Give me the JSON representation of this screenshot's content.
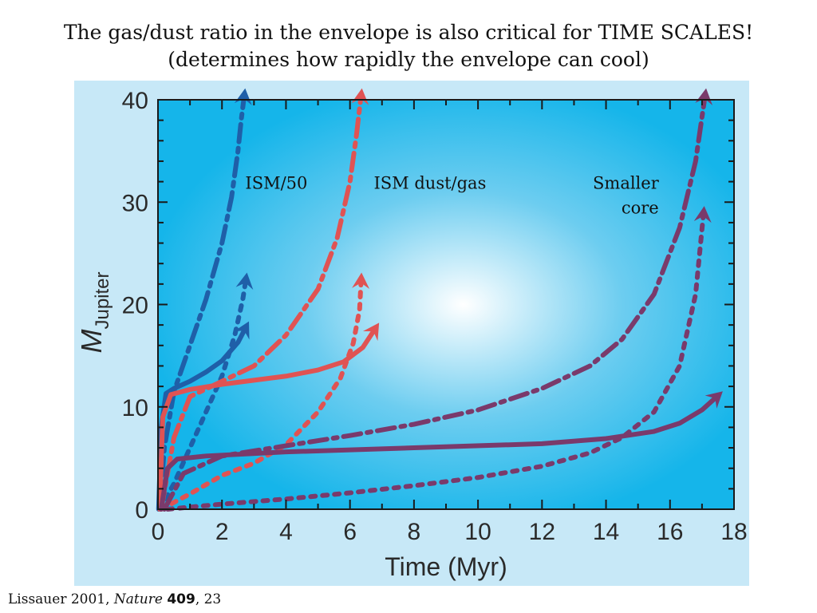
{
  "slide": {
    "title_line1": "The gas/dust ratio in the envelope is also critical for TIME SCALES!",
    "title_line2": "(determines how rapidly the envelope can cool)"
  },
  "citation": {
    "author_year": "Lissauer 2001, ",
    "journal": "Nature",
    "volume": "409",
    "page": ", 23"
  },
  "chart_data": {
    "type": "line",
    "xlabel": "Time (Myr)",
    "ylabel_main": "M",
    "ylabel_sub": "Jupiter",
    "xlim": [
      0,
      18
    ],
    "ylim": [
      0,
      40
    ],
    "xticks": [
      "0",
      "2",
      "4",
      "6",
      "8",
      "10",
      "12",
      "14",
      "16",
      "18"
    ],
    "yticks": [
      "0",
      "10",
      "20",
      "30",
      "40"
    ],
    "grid": false,
    "annotations": [
      {
        "key": "ism50",
        "lines": [
          "ISM/50"
        ],
        "x": 3.7,
        "y": 31.3,
        "anchor": "middle"
      },
      {
        "key": "ism",
        "lines": [
          "ISM dust/gas"
        ],
        "x": 8.5,
        "y": 31.3,
        "anchor": "middle"
      },
      {
        "key": "smaller_core",
        "lines": [
          "Smaller",
          "core"
        ],
        "x": 15.65,
        "y": 31.3,
        "anchor": "end"
      }
    ],
    "colors": {
      "ism50": "#1f5fa8",
      "ism": "#e05353",
      "smaller_core": "#7a3a6b"
    },
    "series": [
      {
        "group": "ism50",
        "style": "solid",
        "arrow": true,
        "x": [
          0.02,
          0.1,
          0.25,
          0.5,
          1.0,
          1.5,
          2.0,
          2.5,
          2.75
        ],
        "y": [
          0,
          8,
          11.3,
          11.8,
          12.5,
          13.4,
          14.5,
          16.3,
          17.8
        ]
      },
      {
        "group": "ism50",
        "style": "dashdot",
        "arrow": true,
        "x": [
          0.05,
          0.2,
          0.5,
          1.0,
          1.5,
          2.0,
          2.3,
          2.5,
          2.6,
          2.7
        ],
        "y": [
          0,
          6,
          11.5,
          16,
          20.5,
          26,
          30.5,
          35,
          38,
          40.5
        ]
      },
      {
        "group": "ism50",
        "style": "dotted",
        "arrow": true,
        "x": [
          0.05,
          0.5,
          1.0,
          1.5,
          2.0,
          2.4,
          2.65,
          2.75
        ],
        "y": [
          0,
          2.5,
          6,
          9.5,
          13,
          17,
          20.5,
          22.5
        ]
      },
      {
        "group": "ism",
        "style": "solid",
        "arrow": true,
        "x": [
          0.05,
          0.15,
          0.4,
          1.0,
          2.0,
          3.0,
          4.0,
          5.0,
          5.8,
          6.4,
          6.8
        ],
        "y": [
          0,
          9,
          11.2,
          11.7,
          12.2,
          12.6,
          13.0,
          13.6,
          14.4,
          15.8,
          17.7
        ]
      },
      {
        "group": "ism",
        "style": "dashdot",
        "arrow": true,
        "x": [
          0.1,
          0.5,
          1.0,
          2.0,
          3.0,
          4.0,
          5.0,
          5.6,
          6.0,
          6.2,
          6.35
        ],
        "y": [
          0,
          7,
          11,
          12.5,
          14,
          17,
          21.5,
          26.5,
          32,
          36.5,
          40.5
        ]
      },
      {
        "group": "ism",
        "style": "dotted",
        "arrow": true,
        "x": [
          0.1,
          1.0,
          2.0,
          3.0,
          4.0,
          5.0,
          5.7,
          6.1,
          6.3,
          6.35
        ],
        "y": [
          0,
          1.5,
          3.3,
          4.5,
          6.3,
          9.5,
          12.8,
          16.2,
          19.5,
          22.5
        ]
      },
      {
        "group": "smaller_core",
        "style": "solid",
        "arrow": true,
        "x": [
          0.1,
          0.3,
          0.6,
          1.5,
          4.0,
          8.0,
          12.0,
          14.0,
          15.5,
          16.3,
          17.0,
          17.5
        ],
        "y": [
          0,
          4.0,
          4.9,
          5.2,
          5.6,
          6.0,
          6.4,
          6.9,
          7.6,
          8.4,
          9.7,
          11.1
        ]
      },
      {
        "group": "smaller_core",
        "style": "dashdot",
        "arrow": true,
        "x": [
          0.2,
          0.8,
          2.0,
          4.0,
          6.0,
          8.0,
          10.0,
          12.0,
          13.5,
          14.5,
          15.5,
          16.3,
          16.8,
          17.1
        ],
        "y": [
          0,
          3.5,
          5.2,
          6.2,
          7.2,
          8.3,
          9.7,
          11.8,
          14.0,
          16.6,
          21.0,
          27.5,
          34.0,
          40.5
        ]
      },
      {
        "group": "smaller_core",
        "style": "dotted",
        "arrow": true,
        "x": [
          0.3,
          2.0,
          4.0,
          6.0,
          8.0,
          10.0,
          12.0,
          13.5,
          14.5,
          15.5,
          16.3,
          16.8,
          17.05
        ],
        "y": [
          0,
          0.5,
          1.0,
          1.6,
          2.3,
          3.1,
          4.2,
          5.5,
          7.0,
          9.5,
          14.0,
          21.0,
          29.0
        ]
      }
    ]
  }
}
